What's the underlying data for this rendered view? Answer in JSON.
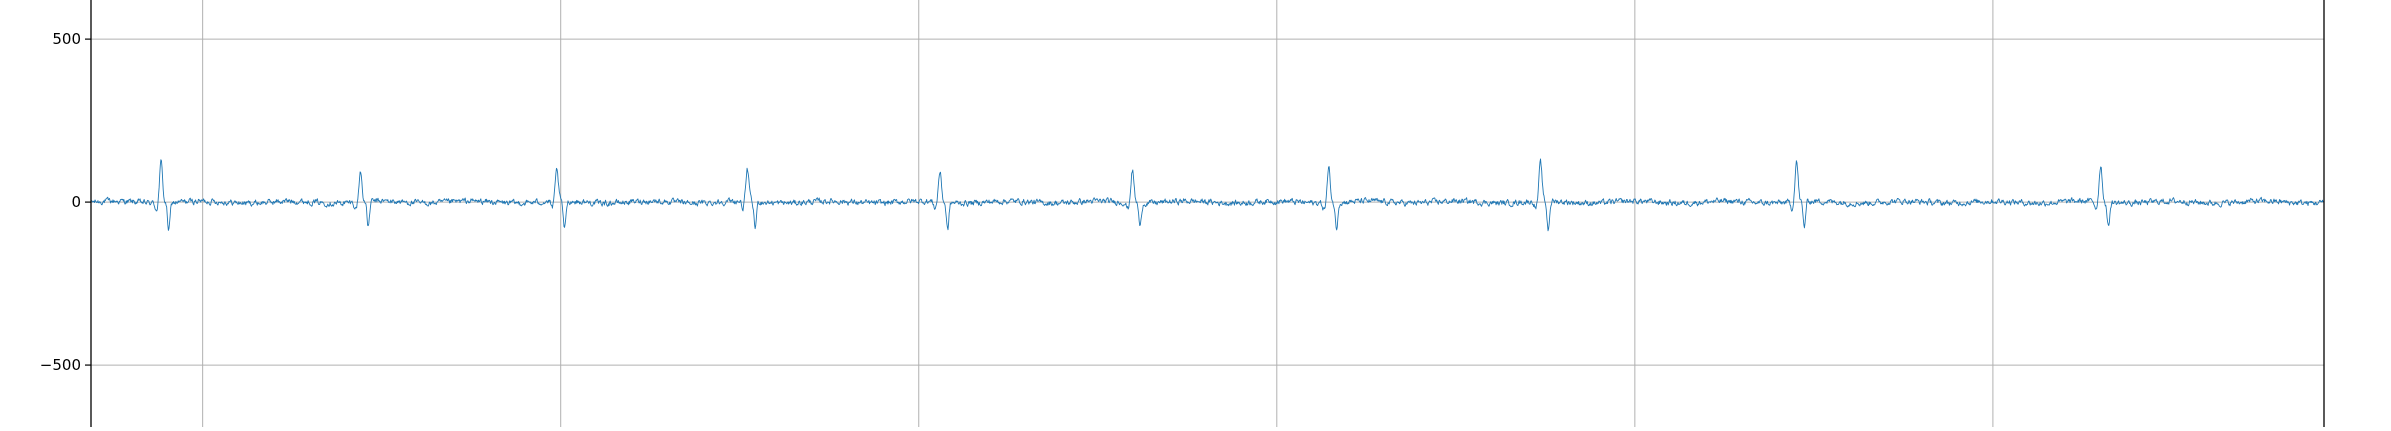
{
  "chart_data": {
    "type": "line",
    "title": "",
    "xlabel": "",
    "ylabel": "",
    "ylim": [
      -690,
      620
    ],
    "xlim": [
      0,
      5800
    ],
    "grid": true,
    "y_ticks": [
      500,
      0,
      -500
    ],
    "y_tick_labels": [
      "500",
      "0",
      "−500"
    ],
    "x_gridlines": [
      290,
      1220,
      2150,
      3080,
      4010,
      4940
    ],
    "x_tick_labels": [],
    "colors": {
      "series": "#1f77b4",
      "grid": "#b0b0b0",
      "axis": "#000000"
    },
    "series": [
      {
        "name": "",
        "noise_amplitude": 9,
        "baseline": 0,
        "beats": [
          {
            "x": 182,
            "peak": 125,
            "trough": -85
          },
          {
            "x": 700,
            "peak": 92,
            "trough": -78
          },
          {
            "x": 1210,
            "peak": 95,
            "trough": -88
          },
          {
            "x": 1705,
            "peak": 98,
            "trough": -82
          },
          {
            "x": 2205,
            "peak": 93,
            "trough": -85
          },
          {
            "x": 2705,
            "peak": 100,
            "trough": -75
          },
          {
            "x": 3215,
            "peak": 105,
            "trough": -80
          },
          {
            "x": 3765,
            "peak": 118,
            "trough": -88
          },
          {
            "x": 4430,
            "peak": 125,
            "trough": -80
          },
          {
            "x": 5220,
            "peak": 112,
            "trough": -78
          }
        ]
      }
    ]
  }
}
